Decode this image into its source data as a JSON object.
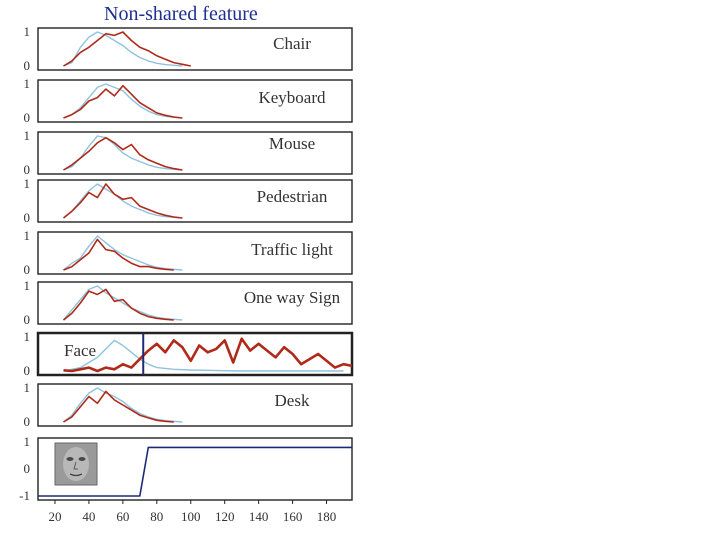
{
  "title": "Non-shared feature",
  "chart_data": {
    "type": "line",
    "xlim": [
      10,
      195
    ],
    "x_ticks": [
      20,
      40,
      60,
      80,
      100,
      120,
      140,
      160,
      180
    ],
    "tick_labels": [
      "20",
      "40",
      "60",
      "80",
      "100",
      "120",
      "140",
      "160",
      "180"
    ],
    "colors": {
      "response": "#b02a1a",
      "baseline": "#8ec3de",
      "frame": "#222222",
      "step": "#1d2a78"
    },
    "panels": [
      {
        "label": "Chair",
        "ylim": [
          0,
          1
        ],
        "y_ticks": [
          "1",
          "0"
        ],
        "series": [
          {
            "x": [
              25,
              30,
              35,
              40,
              45,
              50,
              55,
              60,
              65,
              70,
              75,
              80,
              85,
              90,
              95
            ],
            "y": [
              0,
              0.1,
              0.55,
              0.85,
              1,
              0.9,
              0.75,
              0.6,
              0.4,
              0.25,
              0.15,
              0.08,
              0.04,
              0.02,
              0
            ]
          },
          {
            "x": [
              25,
              30,
              35,
              40,
              45,
              50,
              55,
              60,
              65,
              70,
              75,
              80,
              85,
              90,
              95,
              100
            ],
            "y": [
              0,
              0.15,
              0.4,
              0.55,
              0.75,
              0.95,
              0.9,
              1,
              0.75,
              0.55,
              0.45,
              0.3,
              0.2,
              0.1,
              0.05,
              0
            ]
          }
        ]
      },
      {
        "label": "Keyboard",
        "ylim": [
          0,
          1
        ],
        "y_ticks": [
          "1",
          "0"
        ],
        "series": [
          {
            "x": [
              25,
              30,
              35,
              40,
              45,
              50,
              55,
              60,
              65,
              70,
              75,
              80,
              85,
              90,
              95
            ],
            "y": [
              0,
              0.1,
              0.3,
              0.6,
              0.9,
              1,
              0.9,
              0.8,
              0.55,
              0.35,
              0.2,
              0.1,
              0.05,
              0.02,
              0
            ]
          },
          {
            "x": [
              25,
              30,
              35,
              40,
              45,
              50,
              55,
              60,
              65,
              70,
              75,
              80,
              85,
              90,
              95
            ],
            "y": [
              0,
              0.1,
              0.25,
              0.5,
              0.6,
              0.85,
              0.65,
              0.95,
              0.7,
              0.45,
              0.3,
              0.15,
              0.08,
              0.03,
              0
            ]
          }
        ]
      },
      {
        "label": "Mouse",
        "ylim": [
          0,
          1
        ],
        "y_ticks": [
          "1",
          "0"
        ],
        "series": [
          {
            "x": [
              25,
              30,
              35,
              40,
              45,
              50,
              55,
              60,
              65,
              70,
              75,
              80,
              85,
              90,
              95
            ],
            "y": [
              0,
              0.1,
              0.35,
              0.7,
              1,
              0.95,
              0.75,
              0.5,
              0.35,
              0.25,
              0.15,
              0.08,
              0.04,
              0.02,
              0
            ]
          },
          {
            "x": [
              25,
              30,
              35,
              40,
              45,
              50,
              55,
              60,
              65,
              70,
              75,
              80,
              85,
              90,
              95
            ],
            "y": [
              0,
              0.15,
              0.35,
              0.55,
              0.8,
              0.95,
              0.8,
              0.6,
              0.75,
              0.45,
              0.3,
              0.2,
              0.1,
              0.04,
              0
            ]
          }
        ]
      },
      {
        "label": "Pedestrian",
        "ylim": [
          0,
          1
        ],
        "y_ticks": [
          "1",
          "0"
        ],
        "series": [
          {
            "x": [
              25,
              30,
              35,
              40,
              45,
              50,
              55,
              60,
              65,
              70,
              75,
              80,
              85,
              90,
              95
            ],
            "y": [
              0,
              0.2,
              0.5,
              0.8,
              1,
              0.85,
              0.7,
              0.5,
              0.35,
              0.25,
              0.15,
              0.08,
              0.04,
              0.02,
              0
            ]
          },
          {
            "x": [
              25,
              30,
              35,
              40,
              45,
              50,
              55,
              60,
              65,
              70,
              75,
              80,
              85,
              90,
              95
            ],
            "y": [
              0,
              0.2,
              0.45,
              0.75,
              0.6,
              1,
              0.7,
              0.55,
              0.6,
              0.35,
              0.25,
              0.15,
              0.08,
              0.03,
              0
            ]
          }
        ]
      },
      {
        "label": "Traffic light",
        "ylim": [
          0,
          1
        ],
        "y_ticks": [
          "1",
          "0"
        ],
        "series": [
          {
            "x": [
              25,
              30,
              35,
              40,
              45,
              50,
              55,
              60,
              65,
              70,
              75,
              80,
              85,
              90,
              95
            ],
            "y": [
              0,
              0.2,
              0.35,
              0.7,
              1,
              0.8,
              0.6,
              0.45,
              0.35,
              0.25,
              0.15,
              0.08,
              0.04,
              0.02,
              0
            ]
          },
          {
            "x": [
              25,
              30,
              35,
              40,
              45,
              50,
              55,
              60,
              65,
              70,
              75,
              80,
              85,
              90
            ],
            "y": [
              0,
              0.1,
              0.3,
              0.5,
              0.9,
              0.6,
              0.55,
              0.35,
              0.2,
              0.1,
              0.1,
              0.05,
              0.02,
              0
            ]
          }
        ]
      },
      {
        "label": "One way Sign",
        "ylim": [
          0,
          1
        ],
        "y_ticks": [
          "1",
          "0"
        ],
        "series": [
          {
            "x": [
              25,
              30,
              35,
              40,
              45,
              50,
              55,
              60,
              65,
              70,
              75,
              80,
              85,
              90,
              95
            ],
            "y": [
              0,
              0.3,
              0.6,
              0.9,
              1,
              0.8,
              0.65,
              0.5,
              0.35,
              0.25,
              0.15,
              0.08,
              0.04,
              0.02,
              0
            ]
          },
          {
            "x": [
              25,
              30,
              35,
              40,
              45,
              50,
              55,
              60,
              65,
              70,
              75,
              80,
              85,
              90
            ],
            "y": [
              0,
              0.2,
              0.5,
              0.85,
              0.75,
              0.9,
              0.55,
              0.6,
              0.35,
              0.2,
              0.1,
              0.05,
              0.02,
              0
            ]
          }
        ]
      },
      {
        "label": "Face",
        "ylim": [
          0,
          1
        ],
        "y_ticks": [
          "1",
          "0"
        ],
        "marker_x": 72,
        "series": [
          {
            "x": [
              25,
              35,
              45,
              55,
              60,
              65,
              70,
              75,
              80,
              90,
              100,
              110,
              120,
              130,
              140,
              150,
              160,
              170,
              180,
              190
            ],
            "y": [
              0,
              0.1,
              0.4,
              0.9,
              0.75,
              0.55,
              0.35,
              0.2,
              0.1,
              0.05,
              0.03,
              0.02,
              0.01,
              0,
              0,
              0,
              0,
              0,
              0,
              0
            ]
          },
          {
            "x": [
              25,
              30,
              35,
              40,
              45,
              50,
              55,
              60,
              65,
              70,
              75,
              80,
              85,
              90,
              95,
              100,
              105,
              110,
              115,
              120,
              125,
              130,
              135,
              140,
              145,
              150,
              155,
              160,
              165,
              170,
              175,
              180,
              185,
              190,
              195
            ],
            "y": [
              0.02,
              0,
              0.05,
              0.1,
              0,
              0.1,
              0.05,
              0.2,
              0.1,
              0.35,
              0.6,
              0.8,
              0.55,
              0.9,
              0.7,
              0.3,
              0.75,
              0.55,
              0.65,
              0.9,
              0.25,
              0.95,
              0.6,
              0.8,
              0.6,
              0.4,
              0.7,
              0.5,
              0.2,
              0.35,
              0.5,
              0.3,
              0.1,
              0.2,
              0.15
            ]
          }
        ]
      },
      {
        "label": "Desk",
        "ylim": [
          0,
          1
        ],
        "y_ticks": [
          "1",
          "0"
        ],
        "series": [
          {
            "x": [
              25,
              30,
              35,
              40,
              45,
              50,
              55,
              60,
              65,
              70,
              75,
              80,
              85,
              90,
              95
            ],
            "y": [
              0,
              0.2,
              0.55,
              0.85,
              1,
              0.85,
              0.75,
              0.6,
              0.4,
              0.25,
              0.15,
              0.08,
              0.04,
              0.02,
              0
            ]
          },
          {
            "x": [
              25,
              30,
              35,
              40,
              45,
              50,
              55,
              60,
              65,
              70,
              75,
              80,
              85,
              90
            ],
            "y": [
              0,
              0.15,
              0.45,
              0.75,
              0.55,
              0.9,
              0.65,
              0.5,
              0.35,
              0.2,
              0.12,
              0.05,
              0.02,
              0
            ]
          }
        ]
      },
      {
        "label": "",
        "ylim": [
          -1,
          1
        ],
        "y_ticks": [
          "1",
          "0",
          "-1"
        ],
        "thumbnail": "face-thumbnail",
        "series": [
          {
            "x": [
              10,
              70,
              75,
              195
            ],
            "y": [
              -1,
              -1,
              0.8,
              0.8
            ]
          }
        ]
      }
    ]
  }
}
